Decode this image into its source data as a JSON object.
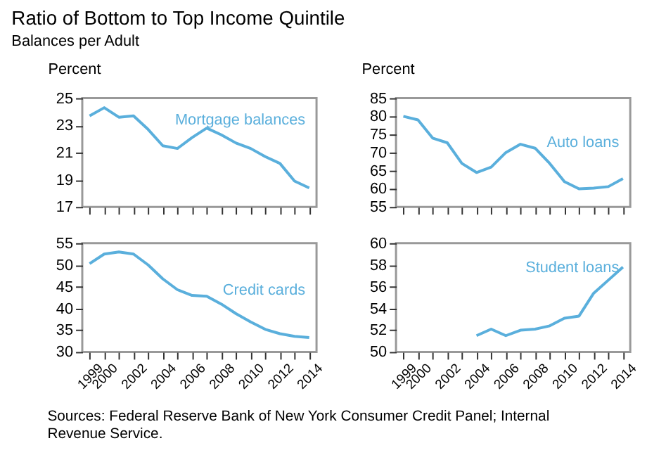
{
  "chart_data": [
    {
      "type": "line",
      "title": "Ratio of Bottom to Top Income Quintile",
      "subtitle": "Balances per Adult",
      "ylabel": "Percent",
      "x": [
        1999,
        2000,
        2001,
        2002,
        2003,
        2004,
        2005,
        2006,
        2007,
        2008,
        2009,
        2010,
        2011,
        2012,
        2013,
        2014
      ],
      "xlim": [
        1998.5,
        2014.5
      ],
      "xticks": [
        {
          "value": 1999,
          "label": null
        },
        {
          "value": 2000,
          "label": null
        },
        {
          "value": 2001,
          "label": null
        },
        {
          "value": 2002,
          "label": null
        },
        {
          "value": 2003,
          "label": null
        },
        {
          "value": 2004,
          "label": null
        },
        {
          "value": 2005,
          "label": null
        },
        {
          "value": 2006,
          "label": null
        },
        {
          "value": 2007,
          "label": null
        },
        {
          "value": 2008,
          "label": null
        },
        {
          "value": 2009,
          "label": null
        },
        {
          "value": 2010,
          "label": null
        },
        {
          "value": 2011,
          "label": null
        },
        {
          "value": 2012,
          "label": null
        },
        {
          "value": 2013,
          "label": null
        },
        {
          "value": 2014,
          "label": null
        }
      ],
      "ylim": [
        17,
        25
      ],
      "yticks": [
        17,
        19,
        21,
        23,
        25
      ],
      "tick_labels": "y",
      "grid": false,
      "series": [
        {
          "name": "Mortgage balances",
          "color": "#5aafdc",
          "values": [
            23.7,
            24.3,
            23.6,
            23.7,
            22.7,
            21.5,
            21.3,
            22.1,
            22.8,
            22.3,
            21.7,
            21.3,
            20.7,
            20.2,
            18.9,
            18.4
          ]
        }
      ]
    },
    {
      "type": "line",
      "ylabel": "Percent",
      "x": [
        1999,
        2000,
        2001,
        2002,
        2003,
        2004,
        2005,
        2006,
        2007,
        2008,
        2009,
        2010,
        2011,
        2012,
        2013,
        2014
      ],
      "xlim": [
        1998.5,
        2014.5
      ],
      "xticks": [
        {
          "value": 1999,
          "label": null
        },
        {
          "value": 2000,
          "label": null
        },
        {
          "value": 2001,
          "label": null
        },
        {
          "value": 2002,
          "label": null
        },
        {
          "value": 2003,
          "label": null
        },
        {
          "value": 2004,
          "label": null
        },
        {
          "value": 2005,
          "label": null
        },
        {
          "value": 2006,
          "label": null
        },
        {
          "value": 2007,
          "label": null
        },
        {
          "value": 2008,
          "label": null
        },
        {
          "value": 2009,
          "label": null
        },
        {
          "value": 2010,
          "label": null
        },
        {
          "value": 2011,
          "label": null
        },
        {
          "value": 2012,
          "label": null
        },
        {
          "value": 2013,
          "label": null
        },
        {
          "value": 2014,
          "label": null
        }
      ],
      "ylim": [
        55,
        85
      ],
      "yticks": [
        55,
        60,
        65,
        70,
        75,
        80,
        85
      ],
      "tick_labels": "y",
      "grid": false,
      "series": [
        {
          "name": "Auto loans",
          "color": "#5aafdc",
          "values": [
            80,
            79,
            74,
            72.7,
            67,
            64.5,
            66,
            70,
            72.3,
            71.2,
            67,
            62,
            60,
            60.2,
            60.6,
            62.8
          ]
        }
      ]
    },
    {
      "type": "line",
      "x": [
        1999,
        2000,
        2001,
        2002,
        2003,
        2004,
        2005,
        2006,
        2007,
        2008,
        2009,
        2010,
        2011,
        2012,
        2013,
        2014
      ],
      "xlim": [
        1998.5,
        2014.5
      ],
      "xticks": [
        {
          "value": 1999,
          "label": "1999"
        },
        {
          "value": 2000,
          "label": "2000"
        },
        {
          "value": 2001,
          "label": null
        },
        {
          "value": 2002,
          "label": "2002"
        },
        {
          "value": 2003,
          "label": null
        },
        {
          "value": 2004,
          "label": "2004"
        },
        {
          "value": 2005,
          "label": null
        },
        {
          "value": 2006,
          "label": "2006"
        },
        {
          "value": 2007,
          "label": null
        },
        {
          "value": 2008,
          "label": "2008"
        },
        {
          "value": 2009,
          "label": null
        },
        {
          "value": 2010,
          "label": "2010"
        },
        {
          "value": 2011,
          "label": null
        },
        {
          "value": 2012,
          "label": "2012"
        },
        {
          "value": 2013,
          "label": null
        },
        {
          "value": 2014,
          "label": "2014"
        }
      ],
      "ylim": [
        30,
        55
      ],
      "yticks": [
        30,
        35,
        40,
        45,
        50,
        55
      ],
      "grid": false,
      "series": [
        {
          "name": "Credit cards",
          "color": "#5aafdc",
          "values": [
            50.3,
            52.5,
            53,
            52.5,
            50,
            46.8,
            44.3,
            43,
            42.8,
            41,
            38.8,
            36.9,
            35.2,
            34.2,
            33.6,
            33.3
          ]
        }
      ]
    },
    {
      "type": "line",
      "x": [
        2004,
        2005,
        2006,
        2007,
        2008,
        2009,
        2010,
        2011,
        2012,
        2013,
        2014
      ],
      "xlim": [
        1998.5,
        2014.5
      ],
      "xticks": [
        {
          "value": 1999,
          "label": "1999"
        },
        {
          "value": 2000,
          "label": "2000"
        },
        {
          "value": 2001,
          "label": null
        },
        {
          "value": 2002,
          "label": "2002"
        },
        {
          "value": 2003,
          "label": null
        },
        {
          "value": 2004,
          "label": "2004"
        },
        {
          "value": 2005,
          "label": null
        },
        {
          "value": 2006,
          "label": "2006"
        },
        {
          "value": 2007,
          "label": null
        },
        {
          "value": 2008,
          "label": "2008"
        },
        {
          "value": 2009,
          "label": null
        },
        {
          "value": 2010,
          "label": "2010"
        },
        {
          "value": 2011,
          "label": null
        },
        {
          "value": 2012,
          "label": "2012"
        },
        {
          "value": 2013,
          "label": null
        },
        {
          "value": 2014,
          "label": "2014"
        }
      ],
      "ylim": [
        50,
        60
      ],
      "yticks": [
        50,
        52,
        54,
        56,
        58,
        60
      ],
      "grid": false,
      "annotations": [
        "Sources: Federal Reserve Bank of New York Consumer Credit Panel; Internal Revenue Service."
      ],
      "series": [
        {
          "name": "Student loans",
          "color": "#5aafdc",
          "values": [
            51.5,
            52.1,
            51.5,
            52,
            52.1,
            52.4,
            53.1,
            53.3,
            55.4,
            56.6,
            57.8
          ]
        }
      ]
    }
  ]
}
